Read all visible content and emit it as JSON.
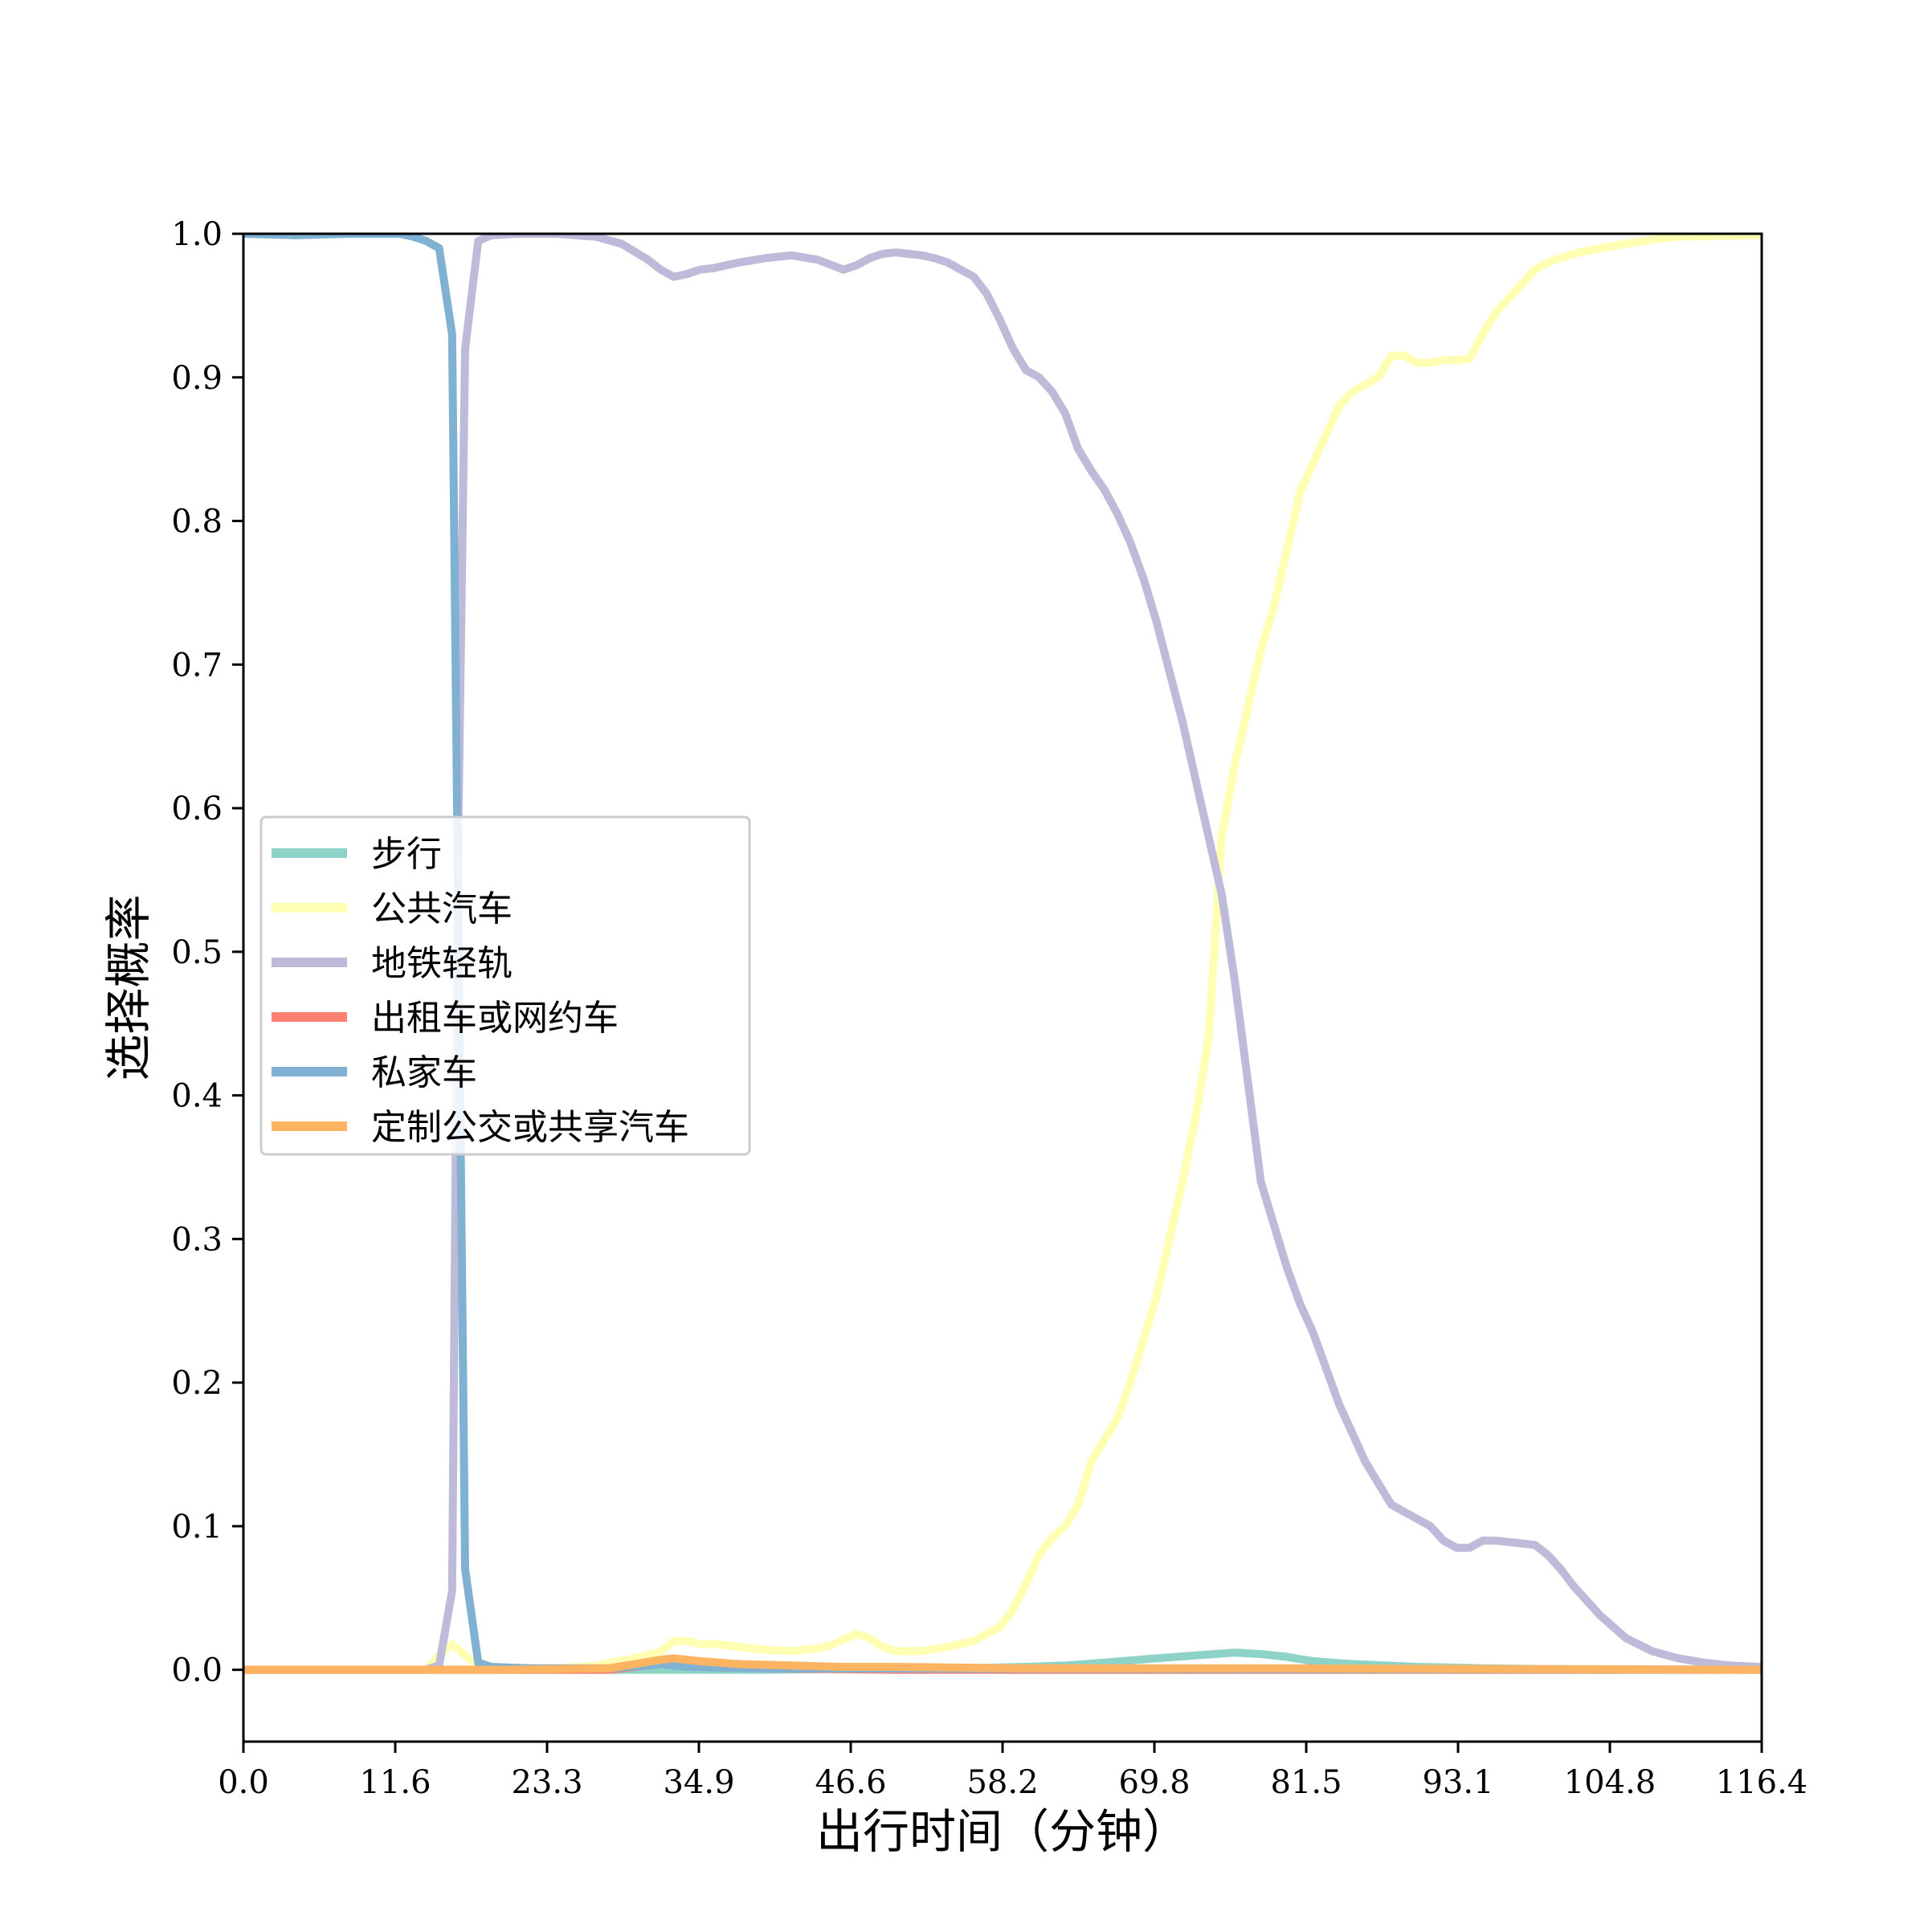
{
  "chart_data": {
    "type": "line",
    "xlabel": "出行时间（分钟）",
    "ylabel": "选择概率",
    "xlim": [
      0,
      116.4
    ],
    "ylim": [
      -0.05,
      1.0
    ],
    "xticks": [
      "0.0",
      "11.6",
      "23.3",
      "34.9",
      "46.6",
      "58.2",
      "69.8",
      "81.5",
      "93.1",
      "104.8",
      "116.4"
    ],
    "yticks": [
      "0.0",
      "0.1",
      "0.2",
      "0.3",
      "0.4",
      "0.5",
      "0.6",
      "0.7",
      "0.8",
      "0.9",
      "1.0"
    ],
    "grid": false,
    "legend_position": "center-left",
    "series": [
      {
        "name": "步行",
        "color": "#8dd3c7",
        "points": [
          [
            0,
            0
          ],
          [
            20,
            0
          ],
          [
            40,
            0
          ],
          [
            50,
            0.001
          ],
          [
            55,
            0.001
          ],
          [
            60,
            0.002
          ],
          [
            63,
            0.003
          ],
          [
            66,
            0.005
          ],
          [
            70,
            0.008
          ],
          [
            73,
            0.01
          ],
          [
            76,
            0.012
          ],
          [
            78,
            0.011
          ],
          [
            80,
            0.009
          ],
          [
            82,
            0.006
          ],
          [
            85,
            0.004
          ],
          [
            90,
            0.002
          ],
          [
            95,
            0.001
          ],
          [
            100,
            0.0005
          ],
          [
            116.4,
            0
          ]
        ]
      },
      {
        "name": "公共汽车",
        "color": "#ffffb3",
        "points": [
          [
            0,
            0
          ],
          [
            10,
            0
          ],
          [
            14,
            0
          ],
          [
            15,
            0.01
          ],
          [
            16,
            0.018
          ],
          [
            17,
            0.01
          ],
          [
            18,
            0.003
          ],
          [
            20,
            0.001
          ],
          [
            24,
            0.001
          ],
          [
            27,
            0.003
          ],
          [
            30,
            0.008
          ],
          [
            32,
            0.013
          ],
          [
            33,
            0.02
          ],
          [
            34,
            0.02
          ],
          [
            35,
            0.018
          ],
          [
            36,
            0.018
          ],
          [
            38,
            0.016
          ],
          [
            40,
            0.014
          ],
          [
            42,
            0.013
          ],
          [
            44,
            0.015
          ],
          [
            45,
            0.017
          ],
          [
            46,
            0.021
          ],
          [
            47,
            0.025
          ],
          [
            48,
            0.022
          ],
          [
            49,
            0.016
          ],
          [
            50,
            0.013
          ],
          [
            52,
            0.013
          ],
          [
            54,
            0.016
          ],
          [
            56,
            0.02
          ],
          [
            57,
            0.025
          ],
          [
            58,
            0.03
          ],
          [
            59,
            0.042
          ],
          [
            60,
            0.06
          ],
          [
            61,
            0.08
          ],
          [
            62,
            0.092
          ],
          [
            63,
            0.1
          ],
          [
            64,
            0.115
          ],
          [
            65,
            0.145
          ],
          [
            66,
            0.16
          ],
          [
            67,
            0.175
          ],
          [
            68,
            0.2
          ],
          [
            69,
            0.23
          ],
          [
            70,
            0.26
          ],
          [
            71,
            0.3
          ],
          [
            72,
            0.34
          ],
          [
            73,
            0.385
          ],
          [
            74,
            0.44
          ],
          [
            75,
            0.58
          ],
          [
            76,
            0.63
          ],
          [
            77,
            0.67
          ],
          [
            78,
            0.71
          ],
          [
            79,
            0.74
          ],
          [
            80,
            0.78
          ],
          [
            81,
            0.82
          ],
          [
            82,
            0.84
          ],
          [
            83,
            0.86
          ],
          [
            84,
            0.88
          ],
          [
            85,
            0.89
          ],
          [
            86,
            0.895
          ],
          [
            87,
            0.9
          ],
          [
            88,
            0.915
          ],
          [
            89,
            0.915
          ],
          [
            90,
            0.91
          ],
          [
            91,
            0.91
          ],
          [
            92,
            0.912
          ],
          [
            93,
            0.912
          ],
          [
            94,
            0.913
          ],
          [
            95,
            0.93
          ],
          [
            96,
            0.945
          ],
          [
            97,
            0.955
          ],
          [
            98,
            0.965
          ],
          [
            99,
            0.975
          ],
          [
            100,
            0.98
          ],
          [
            102,
            0.986
          ],
          [
            104,
            0.99
          ],
          [
            106,
            0.993
          ],
          [
            108,
            0.996
          ],
          [
            110,
            0.998
          ],
          [
            116.4,
            0.999
          ]
        ]
      },
      {
        "name": "地铁轻轨",
        "color": "#bebada",
        "points": [
          [
            0,
            0
          ],
          [
            10,
            0
          ],
          [
            14,
            0
          ],
          [
            15,
            0.003
          ],
          [
            16,
            0.055
          ],
          [
            16.5,
            0.6
          ],
          [
            17,
            0.92
          ],
          [
            18,
            0.995
          ],
          [
            19,
            0.999
          ],
          [
            21,
            1.0
          ],
          [
            24,
            1.0
          ],
          [
            27,
            0.998
          ],
          [
            29,
            0.993
          ],
          [
            31,
            0.982
          ],
          [
            32,
            0.975
          ],
          [
            33,
            0.97
          ],
          [
            34,
            0.972
          ],
          [
            35,
            0.975
          ],
          [
            36,
            0.976
          ],
          [
            38,
            0.98
          ],
          [
            40,
            0.983
          ],
          [
            42,
            0.985
          ],
          [
            44,
            0.982
          ],
          [
            46,
            0.975
          ],
          [
            47,
            0.978
          ],
          [
            48,
            0.983
          ],
          [
            49,
            0.986
          ],
          [
            50,
            0.987
          ],
          [
            51,
            0.986
          ],
          [
            52,
            0.985
          ],
          [
            53,
            0.983
          ],
          [
            54,
            0.98
          ],
          [
            55,
            0.975
          ],
          [
            56,
            0.97
          ],
          [
            57,
            0.958
          ],
          [
            58,
            0.94
          ],
          [
            59,
            0.92
          ],
          [
            60,
            0.905
          ],
          [
            61,
            0.9
          ],
          [
            62,
            0.89
          ],
          [
            63,
            0.875
          ],
          [
            64,
            0.85
          ],
          [
            65,
            0.835
          ],
          [
            66,
            0.822
          ],
          [
            67,
            0.805
          ],
          [
            68,
            0.785
          ],
          [
            69,
            0.76
          ],
          [
            70,
            0.73
          ],
          [
            71,
            0.695
          ],
          [
            72,
            0.66
          ],
          [
            73,
            0.62
          ],
          [
            74,
            0.58
          ],
          [
            75,
            0.54
          ],
          [
            76,
            0.48
          ],
          [
            77,
            0.41
          ],
          [
            78,
            0.34
          ],
          [
            79,
            0.31
          ],
          [
            80,
            0.28
          ],
          [
            81,
            0.255
          ],
          [
            82,
            0.235
          ],
          [
            83,
            0.21
          ],
          [
            84,
            0.185
          ],
          [
            85,
            0.165
          ],
          [
            86,
            0.145
          ],
          [
            87,
            0.13
          ],
          [
            88,
            0.115
          ],
          [
            89,
            0.11
          ],
          [
            90,
            0.105
          ],
          [
            91,
            0.1
          ],
          [
            92,
            0.09
          ],
          [
            93,
            0.085
          ],
          [
            94,
            0.085
          ],
          [
            95,
            0.09
          ],
          [
            96,
            0.09
          ],
          [
            97,
            0.089
          ],
          [
            98,
            0.088
          ],
          [
            99,
            0.087
          ],
          [
            100,
            0.08
          ],
          [
            101,
            0.07
          ],
          [
            102,
            0.058
          ],
          [
            104,
            0.038
          ],
          [
            106,
            0.022
          ],
          [
            108,
            0.013
          ],
          [
            110,
            0.008
          ],
          [
            112,
            0.005
          ],
          [
            114,
            0.003
          ],
          [
            116.4,
            0.002
          ]
        ]
      },
      {
        "name": "出租车或网约车",
        "color": "#fb8072",
        "points": [
          [
            0,
            0
          ],
          [
            20,
            0
          ],
          [
            28,
            0
          ],
          [
            30,
            0.002
          ],
          [
            32,
            0.004
          ],
          [
            33,
            0.004
          ],
          [
            35,
            0.002
          ],
          [
            40,
            0.001
          ],
          [
            50,
            0
          ],
          [
            116.4,
            0
          ]
        ]
      },
      {
        "name": "私家车",
        "color": "#80b1d3",
        "points": [
          [
            0,
            1.0
          ],
          [
            4,
            0.999
          ],
          [
            8,
            1.0
          ],
          [
            12,
            1.0
          ],
          [
            13,
            0.998
          ],
          [
            14,
            0.995
          ],
          [
            15,
            0.99
          ],
          [
            16,
            0.93
          ],
          [
            16.5,
            0.5
          ],
          [
            17,
            0.07
          ],
          [
            18,
            0.005
          ],
          [
            19,
            0.002
          ],
          [
            22,
            0.001
          ],
          [
            28,
            0.001
          ],
          [
            31,
            0.003
          ],
          [
            32,
            0.004
          ],
          [
            34,
            0.002
          ],
          [
            40,
            0.001
          ],
          [
            116.4,
            0
          ]
        ]
      },
      {
        "name": "定制公交或共享汽车",
        "color": "#fdb462",
        "points": [
          [
            0,
            0
          ],
          [
            10,
            0
          ],
          [
            20,
            0
          ],
          [
            28,
            0.001
          ],
          [
            30,
            0.004
          ],
          [
            32,
            0.007
          ],
          [
            33,
            0.008
          ],
          [
            35,
            0.006
          ],
          [
            38,
            0.004
          ],
          [
            42,
            0.003
          ],
          [
            46,
            0.002
          ],
          [
            50,
            0.002
          ],
          [
            60,
            0.001
          ],
          [
            70,
            0.001
          ],
          [
            80,
            0.001
          ],
          [
            116.4,
            0
          ]
        ]
      }
    ]
  }
}
